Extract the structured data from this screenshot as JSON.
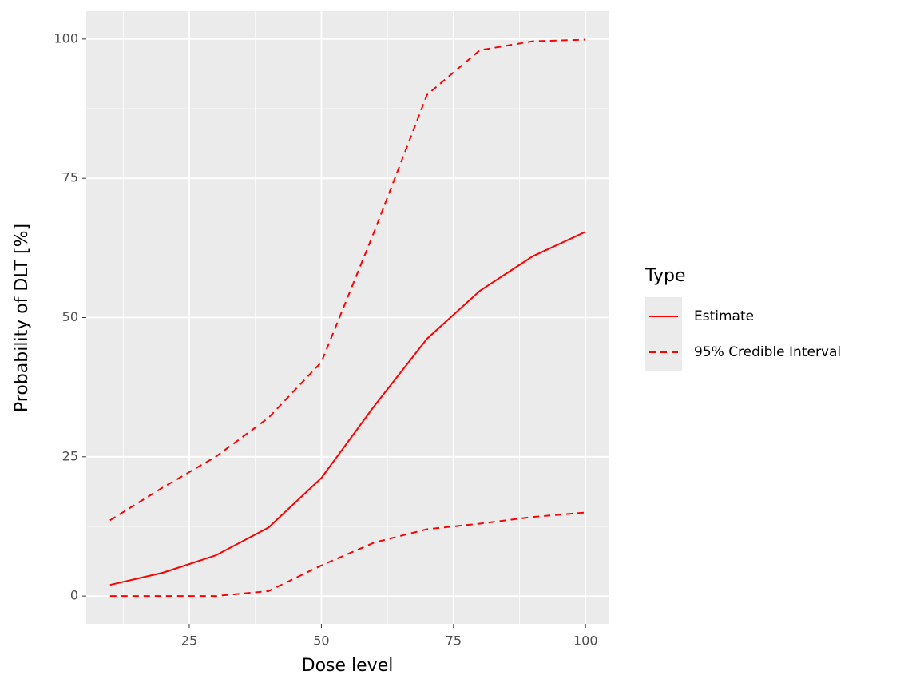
{
  "chart_data": {
    "type": "line",
    "x_label": "Dose level",
    "y_label": "Probability of DLT [%]",
    "x": [
      10,
      20,
      30,
      40,
      50,
      60,
      70,
      80,
      90,
      100
    ],
    "series": [
      {
        "name": "Estimate",
        "color": "#ff0000",
        "linetype": "solid",
        "values": [
          2.0,
          4.2,
          7.3,
          12.3,
          21.2,
          34.1,
          46.2,
          54.8,
          61.0,
          65.4
        ]
      },
      {
        "name": "95% Credible Interval",
        "color": "#ff0000",
        "linetype": "dashed",
        "upper": [
          13.6,
          19.5,
          25.0,
          32.0,
          42.0,
          65.4,
          90.0,
          98.0,
          99.6,
          99.9
        ],
        "lower": [
          0,
          0,
          0,
          0.9,
          5.5,
          9.6,
          12.0,
          13.0,
          14.2,
          15.0
        ]
      }
    ],
    "xlim": [
      5.5,
      104.5
    ],
    "xticks": [
      25,
      50,
      75,
      100
    ],
    "xminor": [
      12.5,
      37.5,
      62.5,
      87.5
    ],
    "ylim": [
      -5,
      105
    ],
    "yticks": [
      0,
      25,
      50,
      75,
      100
    ],
    "yminor": [
      12.5,
      37.5,
      62.5,
      87.5
    ],
    "grid": true,
    "legend_title": "Type",
    "legend_position": "right"
  }
}
